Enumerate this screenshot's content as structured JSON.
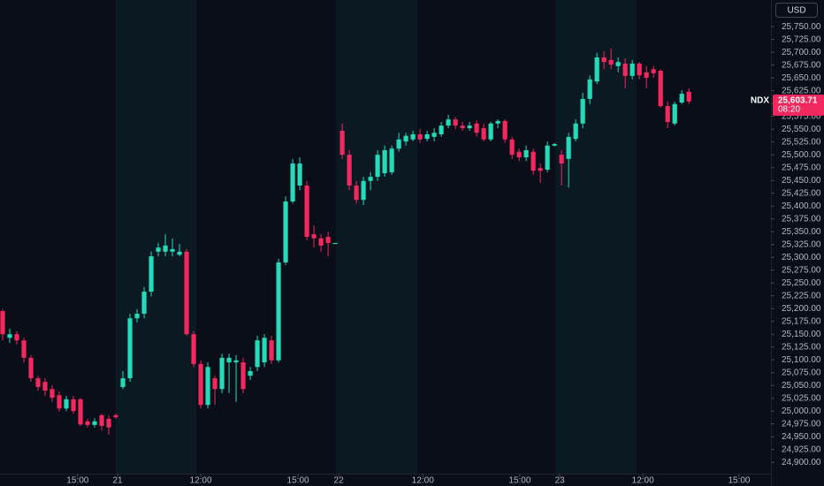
{
  "chart_data": {
    "type": "candlestick",
    "symbol": "NDX",
    "currency": "USD",
    "last_price": {
      "value": 25603.71,
      "label": "25,603.71"
    },
    "countdown": "08:20",
    "up_color": "#26d9b8",
    "down_color": "#f2285f",
    "grid": false,
    "xlim": [
      -0.375,
      108.6
    ],
    "xticks": [
      {
        "value": 10.6,
        "label": "15:00"
      },
      {
        "value": 16.25,
        "label": "21"
      },
      {
        "value": 28,
        "label": "12:00"
      },
      {
        "value": 41.75,
        "label": "15:00"
      },
      {
        "value": 47.5,
        "label": "22"
      },
      {
        "value": 59.4,
        "label": "12:00"
      },
      {
        "value": 73.1,
        "label": "15:00"
      },
      {
        "value": 78.75,
        "label": "23"
      },
      {
        "value": 90.5,
        "label": "12:00"
      },
      {
        "value": 104.1,
        "label": "15:00"
      }
    ],
    "ylim": [
      24878,
      25802
    ],
    "yticks": [
      {
        "value": 24900,
        "label": "24,900.00"
      },
      {
        "value": 24925,
        "label": "24,925.00"
      },
      {
        "value": 24950,
        "label": "24,950.00"
      },
      {
        "value": 24975,
        "label": "24,975.00"
      },
      {
        "value": 25000,
        "label": "25,000.00"
      },
      {
        "value": 25025,
        "label": "25,025.00"
      },
      {
        "value": 25050,
        "label": "25,050.00"
      },
      {
        "value": 25075,
        "label": "25,075.00"
      },
      {
        "value": 25100,
        "label": "25,100.00"
      },
      {
        "value": 25125,
        "label": "25,125.00"
      },
      {
        "value": 25150,
        "label": "25,150.00"
      },
      {
        "value": 25175,
        "label": "25,175.00"
      },
      {
        "value": 25200,
        "label": "25,200.00"
      },
      {
        "value": 25225,
        "label": "25,225.00"
      },
      {
        "value": 25250,
        "label": "25,250.00"
      },
      {
        "value": 25275,
        "label": "25,275.00"
      },
      {
        "value": 25300,
        "label": "25,300.00"
      },
      {
        "value": 25325,
        "label": "25,325.00"
      },
      {
        "value": 25350,
        "label": "25,350.00"
      },
      {
        "value": 25375,
        "label": "25,375.00"
      },
      {
        "value": 25400,
        "label": "25,400.00"
      },
      {
        "value": 25425,
        "label": "25,425.00"
      },
      {
        "value": 25450,
        "label": "25,450.00"
      },
      {
        "value": 25475,
        "label": "25,475.00"
      },
      {
        "value": 25500,
        "label": "25,500.00"
      },
      {
        "value": 25525,
        "label": "25,525.00"
      },
      {
        "value": 25550,
        "label": "25,550.00"
      },
      {
        "value": 25575,
        "label": "25,575.00"
      },
      {
        "value": 25600,
        "label": "25,600.00"
      },
      {
        "value": 25625,
        "label": "25,625.00"
      },
      {
        "value": 25650,
        "label": "25,650.00"
      },
      {
        "value": 25675,
        "label": "25,675.00"
      },
      {
        "value": 25700,
        "label": "25,700.00"
      },
      {
        "value": 25725,
        "label": "25,725.00"
      },
      {
        "value": 25750,
        "label": "25,750.00"
      }
    ],
    "open": [
      25195,
      25143,
      25150,
      25138,
      25104,
      25064,
      25057,
      25043,
      25031,
      25005,
      25023,
      25023,
      24980,
      24973,
      24992,
      24985,
      24992,
      25047,
      25064,
      25181,
      25190,
      25233,
      25311,
      25311,
      25311,
      25305,
      25311,
      25150,
      25092,
      25012,
      25064,
      25043,
      25095,
      25095,
      25095,
      25069,
      25086,
      25095,
      25138,
      25099,
      25290,
      25409,
      25440,
      25440,
      25345,
      25337,
      25340,
      25326,
      25547,
      25500,
      25440,
      25412,
      25449,
      25457,
      25464,
      25466,
      25512,
      25526,
      25530,
      25540,
      25531,
      25535,
      25540,
      25557,
      25569,
      25557,
      25552,
      25561,
      25552,
      25530,
      25561,
      25566,
      25530,
      25506,
      25495,
      25506,
      25474,
      25471,
      25518,
      25500,
      25492,
      25531,
      25561,
      25609,
      25643,
      25690,
      25685,
      25673,
      25678,
      25654,
      25678,
      25661,
      25667,
      25664,
      25595,
      25561,
      25602,
      25623
    ],
    "high": [
      25199,
      25161,
      25156,
      25143,
      25109,
      25069,
      25064,
      25050,
      25038,
      25030,
      25030,
      25026,
      24985,
      24986,
      24995,
      24992,
      24995,
      25078,
      25190,
      25199,
      25242,
      25311,
      25328,
      25345,
      25337,
      25326,
      25316,
      25156,
      25099,
      25095,
      25069,
      25112,
      25112,
      25109,
      25104,
      25086,
      25147,
      25150,
      25147,
      25297,
      25419,
      25492,
      25495,
      25449,
      25362,
      25345,
      25350,
      25328,
      25561,
      25509,
      25449,
      25457,
      25466,
      25509,
      25518,
      25518,
      25543,
      25543,
      25547,
      25550,
      25547,
      25552,
      25564,
      25578,
      25574,
      25564,
      25564,
      25567,
      25561,
      25564,
      25569,
      25569,
      25535,
      25512,
      25518,
      25512,
      25483,
      25526,
      25523,
      25509,
      25543,
      25569,
      25621,
      25655,
      25699,
      25702,
      25707,
      25690,
      25688,
      25685,
      25681,
      25673,
      25673,
      25667,
      25604,
      25604,
      25626,
      25630
    ],
    "low": [
      25138,
      25133,
      25130,
      25095,
      25057,
      25040,
      25030,
      25018,
      24999,
      25000,
      24995,
      24971,
      24968,
      24968,
      24962,
      24954,
      24985,
      25043,
      25057,
      25173,
      25181,
      25224,
      25302,
      25302,
      25302,
      25302,
      25147,
      25086,
      25005,
      25005,
      25012,
      25035,
      25035,
      25018,
      25035,
      25061,
      25078,
      25086,
      25092,
      25095,
      25285,
      25405,
      25431,
      25333,
      25319,
      25311,
      25302,
      25326,
      25492,
      25431,
      25405,
      25402,
      25431,
      25449,
      25457,
      25461,
      25506,
      25518,
      25526,
      25523,
      25526,
      25526,
      25535,
      25552,
      25550,
      25547,
      25547,
      25535,
      25526,
      25526,
      25552,
      25523,
      25492,
      25488,
      25488,
      25461,
      25445,
      25466,
      25516,
      25440,
      25436,
      25526,
      25552,
      25599,
      25638,
      25667,
      25667,
      25661,
      25630,
      25647,
      25647,
      25630,
      25650,
      25592,
      25552,
      25557,
      25599,
      25599
    ],
    "close": [
      25150,
      25150,
      25138,
      25104,
      25064,
      25047,
      25040,
      25026,
      25005,
      25023,
      25000,
      24974,
      24973,
      24980,
      24971,
      24968,
      24988,
      25064,
      25181,
      25190,
      25233,
      25302,
      25319,
      25323,
      25316,
      25311,
      25150,
      25092,
      25012,
      25086,
      25043,
      25104,
      25104,
      25099,
      25043,
      25078,
      25138,
      25143,
      25099,
      25290,
      25409,
      25483,
      25483,
      25340,
      25337,
      25323,
      25328,
      25328,
      25500,
      25440,
      25412,
      25449,
      25457,
      25500,
      25509,
      25512,
      25530,
      25537,
      25540,
      25530,
      25540,
      25543,
      25557,
      25569,
      25557,
      25552,
      25557,
      25543,
      25530,
      25561,
      25566,
      25530,
      25500,
      25495,
      25509,
      25469,
      25469,
      25518,
      25521,
      25483,
      25535,
      25561,
      25609,
      25647,
      25690,
      25681,
      25676,
      25681,
      25654,
      25678,
      25655,
      25650,
      25659,
      25595,
      25564,
      25599,
      25619,
      25604
    ]
  }
}
